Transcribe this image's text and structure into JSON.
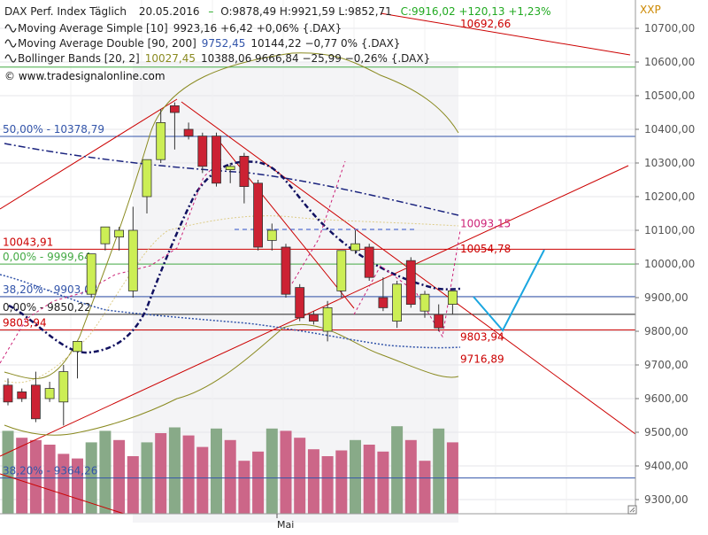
{
  "header": {
    "title": "DAX Perf. Index Täglich",
    "date": "20.05.2016",
    "ohlc": "O:9878,49 H:9921,59 L:9852,71",
    "change": "C:9916,02 +120,13 +1,23%",
    "symbol": "XXP",
    "watermark": "© www.tradesignalonline.com"
  },
  "indicators": [
    {
      "name": "Moving Average Simple [10]",
      "values": "9923,16 +6,42 +0,06% {.DAX}",
      "values_color": "#222222",
      "highlight": "",
      "highlight_color": "#222222"
    },
    {
      "name": "Moving Average Double [90, 200]",
      "values": "9752,45",
      "values_color": "#3355aa",
      "highlight": "10144,22 −0,77 0% {.DAX}",
      "highlight_color": "#222222"
    },
    {
      "name": "Bollinger Bands [20, 2]",
      "values": "10027,45",
      "values_color": "#8a8a20",
      "highlight": "10388,06 9666,84 −25,99 −0,26% {.DAX}",
      "highlight_color": "#222222"
    }
  ],
  "colors": {
    "up_candle": "#ccee55",
    "down_candle": "#cc2233",
    "volume_up": "#88aa88",
    "volume_down": "#cc6688",
    "trend_red": "#cc0000",
    "fib_green": "#44aa44",
    "fib_blue": "#3355aa",
    "axis_text": "#555555"
  },
  "chart_data": {
    "type": "candlestick",
    "ylim": [
      9280,
      10800
    ],
    "y_ticks": [
      9300,
      9400,
      9500,
      9600,
      9700,
      9800,
      9900,
      10000,
      10100,
      10200,
      10300,
      10400,
      10500,
      10600,
      10700
    ],
    "y_tick_labels": [
      "9300,00",
      "9400,00",
      "9500,00",
      "9600,00",
      "9700,00",
      "9800,00",
      "9900,00",
      "10000,00",
      "10100,00",
      "10200,00",
      "10300,00",
      "10400,00",
      "10500,00",
      "10600,00",
      "10700,00"
    ],
    "x_label": "Mai",
    "candles": [
      {
        "o": 9640,
        "h": 9660,
        "l": 9580,
        "c": 9590
      },
      {
        "o": 9620,
        "h": 9630,
        "l": 9590,
        "c": 9600
      },
      {
        "o": 9640,
        "h": 9680,
        "l": 9530,
        "c": 9540
      },
      {
        "o": 9600,
        "h": 9650,
        "l": 9590,
        "c": 9630
      },
      {
        "o": 9590,
        "h": 9700,
        "l": 9520,
        "c": 9680
      },
      {
        "o": 9740,
        "h": 9770,
        "l": 9660,
        "c": 9770
      },
      {
        "o": 9910,
        "h": 10030,
        "l": 9900,
        "c": 10030
      },
      {
        "o": 10060,
        "h": 10110,
        "l": 10040,
        "c": 10110
      },
      {
        "o": 10080,
        "h": 10110,
        "l": 10040,
        "c": 10100
      },
      {
        "o": 9920,
        "h": 10170,
        "l": 9900,
        "c": 10100
      },
      {
        "o": 10200,
        "h": 10310,
        "l": 10150,
        "c": 10310
      },
      {
        "o": 10310,
        "h": 10460,
        "l": 10300,
        "c": 10420
      },
      {
        "o": 10470,
        "h": 10480,
        "l": 10340,
        "c": 10450
      },
      {
        "o": 10400,
        "h": 10420,
        "l": 10370,
        "c": 10380
      },
      {
        "o": 10380,
        "h": 10390,
        "l": 10270,
        "c": 10290
      },
      {
        "o": 10380,
        "h": 10390,
        "l": 10230,
        "c": 10240
      },
      {
        "o": 10280,
        "h": 10300,
        "l": 10240,
        "c": 10290
      },
      {
        "o": 10320,
        "h": 10330,
        "l": 10180,
        "c": 10230
      },
      {
        "o": 10240,
        "h": 10250,
        "l": 10040,
        "c": 10050
      },
      {
        "o": 10070,
        "h": 10120,
        "l": 10040,
        "c": 10100
      },
      {
        "o": 10050,
        "h": 10060,
        "l": 9900,
        "c": 9910
      },
      {
        "o": 9930,
        "h": 9940,
        "l": 9830,
        "c": 9840
      },
      {
        "o": 9850,
        "h": 9860,
        "l": 9820,
        "c": 9830
      },
      {
        "o": 9800,
        "h": 9890,
        "l": 9770,
        "c": 9870
      },
      {
        "o": 9920,
        "h": 10040,
        "l": 9900,
        "c": 10040
      },
      {
        "o": 10040,
        "h": 10100,
        "l": 10030,
        "c": 10060
      },
      {
        "o": 10050,
        "h": 10060,
        "l": 9950,
        "c": 9960
      },
      {
        "o": 9900,
        "h": 9960,
        "l": 9860,
        "c": 9870
      },
      {
        "o": 9830,
        "h": 9950,
        "l": 9810,
        "c": 9940
      },
      {
        "o": 10010,
        "h": 10020,
        "l": 9870,
        "c": 9880
      },
      {
        "o": 9860,
        "h": 9920,
        "l": 9840,
        "c": 9910
      },
      {
        "o": 9850,
        "h": 9880,
        "l": 9800,
        "c": 9810
      },
      {
        "o": 9880,
        "h": 9920,
        "l": 9850,
        "c": 9920
      }
    ],
    "volume": [
      {
        "h": 0.72,
        "up": true
      },
      {
        "h": 0.66,
        "up": false
      },
      {
        "h": 0.64,
        "up": false
      },
      {
        "h": 0.6,
        "up": false
      },
      {
        "h": 0.52,
        "up": false
      },
      {
        "h": 0.48,
        "up": false
      },
      {
        "h": 0.62,
        "up": true
      },
      {
        "h": 0.72,
        "up": true
      },
      {
        "h": 0.64,
        "up": false
      },
      {
        "h": 0.5,
        "up": false
      },
      {
        "h": 0.62,
        "up": true
      },
      {
        "h": 0.7,
        "up": false
      },
      {
        "h": 0.75,
        "up": true
      },
      {
        "h": 0.68,
        "up": false
      },
      {
        "h": 0.58,
        "up": false
      },
      {
        "h": 0.74,
        "up": true
      },
      {
        "h": 0.64,
        "up": false
      },
      {
        "h": 0.46,
        "up": false
      },
      {
        "h": 0.54,
        "up": false
      },
      {
        "h": 0.74,
        "up": true
      },
      {
        "h": 0.72,
        "up": false
      },
      {
        "h": 0.66,
        "up": false
      },
      {
        "h": 0.56,
        "up": false
      },
      {
        "h": 0.5,
        "up": false
      },
      {
        "h": 0.55,
        "up": false
      },
      {
        "h": 0.64,
        "up": true
      },
      {
        "h": 0.6,
        "up": false
      },
      {
        "h": 0.54,
        "up": false
      },
      {
        "h": 0.76,
        "up": true
      },
      {
        "h": 0.64,
        "up": false
      },
      {
        "h": 0.46,
        "up": false
      },
      {
        "h": 0.74,
        "up": true
      },
      {
        "h": 0.62,
        "up": false
      }
    ],
    "horizontal_levels": [
      {
        "value": 10692.66,
        "label": "10692,66",
        "color": "#cc0000",
        "kind": "label-only"
      },
      {
        "value": 10585,
        "label": "",
        "color": "#44aa44",
        "kind": "line"
      },
      {
        "value": 10378.79,
        "label": "50,00% - 10378,79",
        "color": "#3355aa",
        "kind": "line"
      },
      {
        "value": 10043.91,
        "label": "10043,91",
        "color": "#cc0000",
        "kind": "line"
      },
      {
        "value": 9999.64,
        "label": "0,00% - 9999,64",
        "color": "#44aa44",
        "kind": "line"
      },
      {
        "value": 9903.08,
        "label": "38,20% - 9903,08",
        "color": "#3355aa",
        "kind": "line"
      },
      {
        "value": 9850.22,
        "label": "0,00% - 9850,22",
        "color": "#222222",
        "kind": "line"
      },
      {
        "value": 9803.94,
        "label": "9803,94",
        "color": "#cc0000",
        "kind": "line"
      },
      {
        "value": 9364.26,
        "label": "38,20% - 9364,26",
        "color": "#3355aa",
        "kind": "line"
      }
    ],
    "right_labels": [
      {
        "value": 10093.15,
        "label": "10093,15",
        "color": "#cc2277"
      },
      {
        "value": 10054.78,
        "label": "10054,78",
        "color": "#cc0000"
      },
      {
        "value": 9803.94,
        "label": "9803,94",
        "color": "#cc0000"
      },
      {
        "value": 9716.89,
        "label": "9716,89",
        "color": "#cc0000"
      }
    ]
  }
}
